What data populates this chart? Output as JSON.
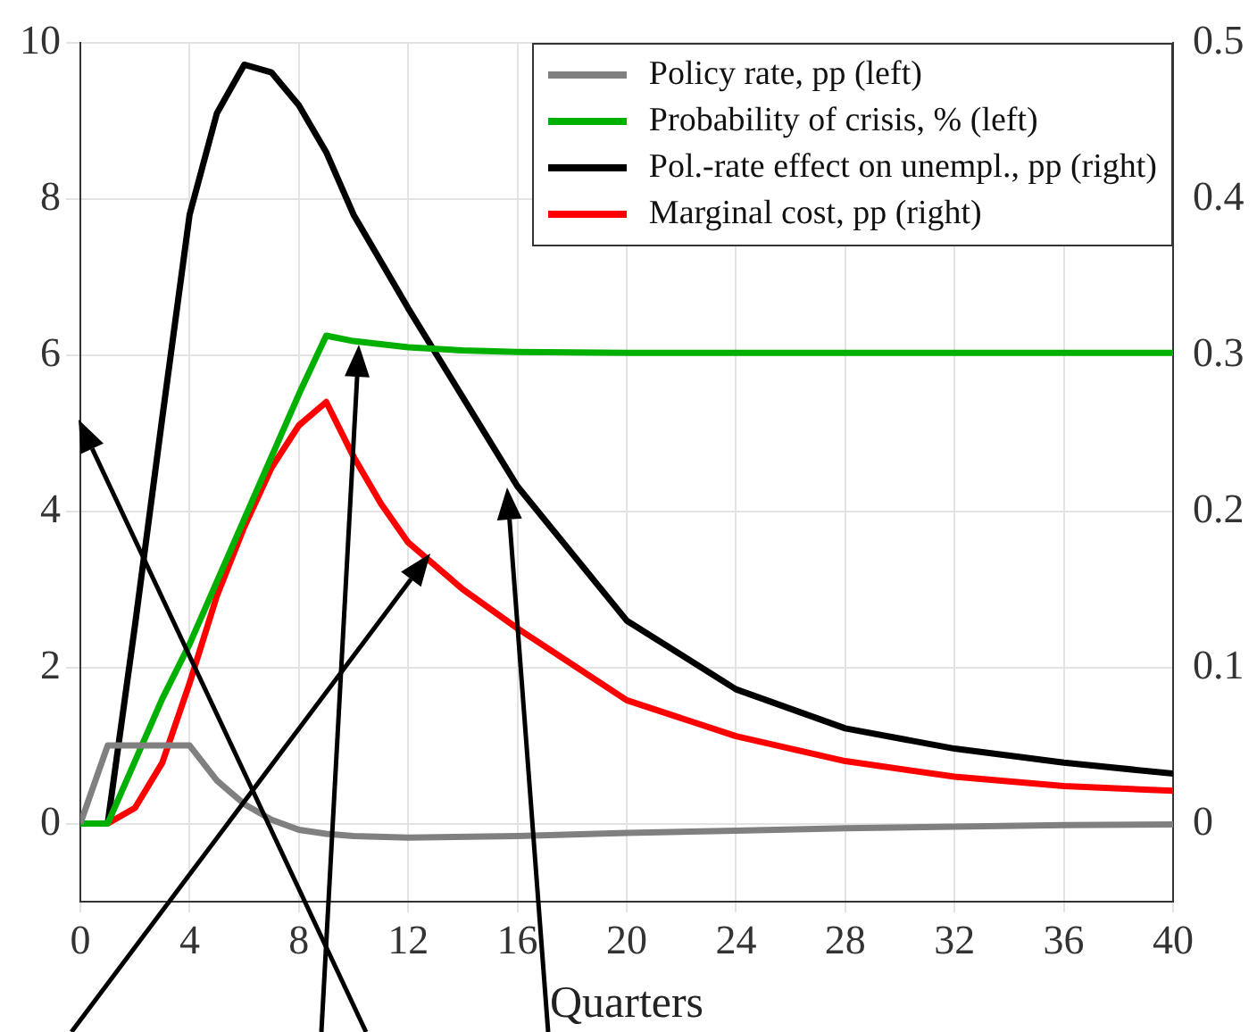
{
  "chart_data": {
    "type": "line",
    "xlabel": "Quarters",
    "xlim": [
      0,
      40
    ],
    "xticks": [
      0,
      4,
      8,
      12,
      16,
      20,
      24,
      28,
      32,
      36,
      40
    ],
    "ylim": [
      -1,
      10
    ],
    "yticks": [
      0,
      2,
      4,
      6,
      8,
      10
    ],
    "y2lim": [
      -0.05,
      0.5
    ],
    "y2ticks": [
      0,
      0.1,
      0.2,
      0.3,
      0.4,
      0.5
    ],
    "grid": true,
    "legend": "top right",
    "series": [
      {
        "name": "Policy rate, pp (left)",
        "color": "#808080",
        "x": [
          0,
          1,
          2,
          3,
          4,
          5,
          6,
          7,
          8,
          9,
          10,
          12,
          16,
          20,
          24,
          28,
          32,
          36,
          40
        ],
        "values": [
          0,
          1,
          1,
          1,
          1,
          0.55,
          0.25,
          0.05,
          -0.08,
          -0.13,
          -0.16,
          -0.18,
          -0.16,
          -0.12,
          -0.09,
          -0.06,
          -0.04,
          -0.02,
          -0.01
        ]
      },
      {
        "name": "Probability of crisis, % (left)",
        "color": "#00b000",
        "x": [
          0,
          1,
          2,
          3,
          4,
          5,
          6,
          7,
          8,
          9,
          10,
          11,
          12,
          13,
          14,
          16,
          20,
          40
        ],
        "values": [
          0,
          0,
          0.8,
          1.6,
          2.3,
          3.1,
          3.9,
          4.7,
          5.5,
          6.25,
          6.18,
          6.14,
          6.1,
          6.08,
          6.06,
          6.04,
          6.03,
          6.03
        ]
      },
      {
        "name": "Pol.-rate effect on unempl., pp (right)",
        "color": "#000000",
        "axis": "y2",
        "x": [
          1,
          2,
          3,
          4,
          5,
          6,
          7,
          8,
          9,
          10,
          12,
          16,
          20,
          24,
          28,
          32,
          36,
          40
        ],
        "values": [
          0,
          0.127,
          0.26,
          0.39,
          0.455,
          0.486,
          0.481,
          0.46,
          0.43,
          0.39,
          0.33,
          0.216,
          0.13,
          0.086,
          0.061,
          0.048,
          0.039,
          0.032
        ]
      },
      {
        "name": "Marginal cost, pp (right)",
        "color": "#ff0000",
        "axis": "y2",
        "x": [
          1,
          2,
          3,
          4,
          5,
          6,
          7,
          8,
          9,
          10,
          11,
          12,
          14,
          16,
          20,
          24,
          28,
          32,
          36,
          40
        ],
        "values": [
          0,
          0.01,
          0.039,
          0.09,
          0.146,
          0.19,
          0.228,
          0.255,
          0.27,
          0.235,
          0.205,
          0.18,
          0.15,
          0.125,
          0.079,
          0.056,
          0.04,
          0.03,
          0.024,
          0.021
        ]
      }
    ]
  }
}
